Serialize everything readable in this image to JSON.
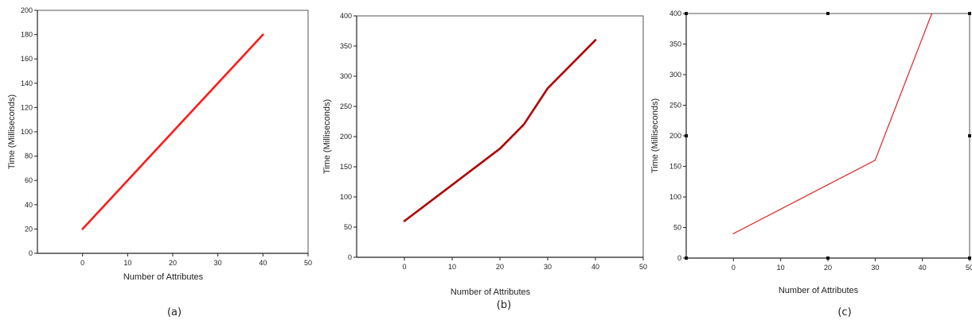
{
  "chart_data": [
    {
      "type": "line",
      "caption": "(a)",
      "xlabel": "Number of Attributes",
      "ylabel": "Time (Milliseconds)",
      "xlim": [
        -10,
        50
      ],
      "ylim": [
        0,
        200
      ],
      "xticks": [
        0,
        10,
        20,
        30,
        40,
        50
      ],
      "yticks": [
        0,
        20,
        40,
        60,
        80,
        100,
        120,
        140,
        160,
        180,
        200
      ],
      "grid": false,
      "series": [
        {
          "color": "#ff1a1a",
          "x": [
            0,
            40
          ],
          "y": [
            20,
            180
          ]
        }
      ]
    },
    {
      "type": "line",
      "caption": "(b)",
      "xlabel": "Number of Attributes",
      "ylabel": "Time (Milliseconds)",
      "xlim": [
        -10,
        50
      ],
      "ylim": [
        0,
        400
      ],
      "xticks": [
        0,
        10,
        20,
        30,
        40,
        50
      ],
      "yticks": [
        0,
        50,
        100,
        150,
        200,
        250,
        300,
        350,
        400
      ],
      "grid": false,
      "series": [
        {
          "color": "#b00000",
          "x": [
            0,
            10,
            20,
            25,
            30,
            40
          ],
          "y": [
            60,
            120,
            180,
            220,
            280,
            360
          ]
        }
      ]
    },
    {
      "type": "line",
      "caption": "(c)",
      "xlabel": "Number of Attributes",
      "ylabel": "Time (Milliseconds)",
      "xlim": [
        -10,
        50
      ],
      "ylim": [
        0,
        400
      ],
      "xticks": [
        0,
        10,
        20,
        30,
        40,
        50
      ],
      "yticks": [
        0,
        50,
        100,
        150,
        200,
        250,
        300,
        350,
        400
      ],
      "grid": false,
      "series": [
        {
          "color": "#e03030",
          "x": [
            0,
            30,
            42
          ],
          "y": [
            40,
            160,
            400
          ]
        }
      ]
    }
  ]
}
